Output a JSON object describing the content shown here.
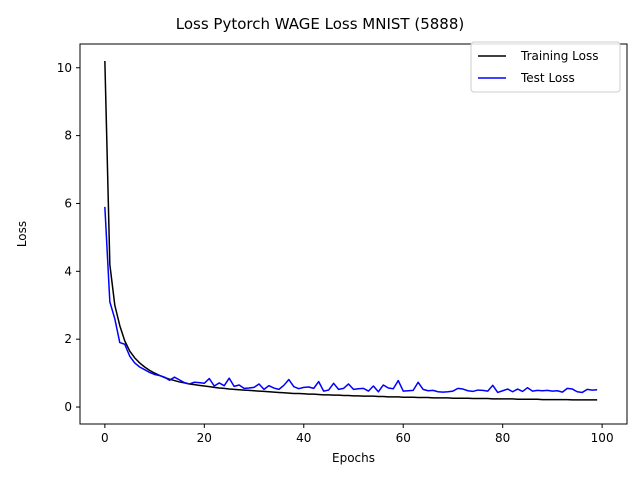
{
  "chart_data": {
    "type": "line",
    "title": "Loss Pytorch WAGE Loss MNIST (5888)",
    "xlabel": "Epochs",
    "ylabel": "Loss",
    "xlim": [
      -5,
      105
    ],
    "ylim": [
      -0.5,
      10.7
    ],
    "xticks": [
      0,
      20,
      40,
      60,
      80,
      100
    ],
    "yticks": [
      0,
      2,
      4,
      6,
      8,
      10
    ],
    "grid": false,
    "legend_position": "top-right",
    "series": [
      {
        "name": "Training Loss",
        "color": "#000000",
        "x": [
          0,
          1,
          2,
          3,
          4,
          5,
          6,
          7,
          8,
          9,
          10,
          11,
          12,
          13,
          14,
          15,
          16,
          17,
          18,
          19,
          20,
          21,
          22,
          23,
          24,
          25,
          26,
          27,
          28,
          29,
          30,
          31,
          32,
          33,
          34,
          35,
          36,
          37,
          38,
          39,
          40,
          41,
          42,
          43,
          44,
          45,
          46,
          47,
          48,
          49,
          50,
          51,
          52,
          53,
          54,
          55,
          56,
          57,
          58,
          59,
          60,
          61,
          62,
          63,
          64,
          65,
          66,
          67,
          68,
          69,
          70,
          71,
          72,
          73,
          74,
          75,
          76,
          77,
          78,
          79,
          80,
          81,
          82,
          83,
          84,
          85,
          86,
          87,
          88,
          89,
          90,
          91,
          92,
          93,
          94,
          95,
          96,
          97,
          98,
          99
        ],
        "values": [
          10.2,
          4.2,
          3.0,
          2.4,
          1.95,
          1.65,
          1.45,
          1.3,
          1.18,
          1.08,
          1.0,
          0.93,
          0.87,
          0.82,
          0.78,
          0.74,
          0.71,
          0.68,
          0.66,
          0.64,
          0.62,
          0.6,
          0.58,
          0.56,
          0.55,
          0.53,
          0.52,
          0.51,
          0.5,
          0.49,
          0.48,
          0.47,
          0.46,
          0.45,
          0.44,
          0.43,
          0.42,
          0.41,
          0.4,
          0.4,
          0.39,
          0.38,
          0.38,
          0.37,
          0.36,
          0.36,
          0.35,
          0.35,
          0.34,
          0.34,
          0.33,
          0.33,
          0.32,
          0.32,
          0.32,
          0.31,
          0.31,
          0.3,
          0.3,
          0.3,
          0.29,
          0.29,
          0.29,
          0.28,
          0.28,
          0.28,
          0.27,
          0.27,
          0.27,
          0.27,
          0.26,
          0.26,
          0.26,
          0.26,
          0.25,
          0.25,
          0.25,
          0.25,
          0.24,
          0.24,
          0.24,
          0.24,
          0.24,
          0.23,
          0.23,
          0.23,
          0.23,
          0.23,
          0.22,
          0.22,
          0.22,
          0.22,
          0.22,
          0.22,
          0.21,
          0.21,
          0.21,
          0.21,
          0.21,
          0.21
        ]
      },
      {
        "name": "Test Loss",
        "color": "#0000ff",
        "x": [
          0,
          1,
          2,
          3,
          4,
          5,
          6,
          7,
          8,
          9,
          10,
          11,
          12,
          13,
          14,
          15,
          16,
          17,
          18,
          19,
          20,
          21,
          22,
          23,
          24,
          25,
          26,
          27,
          28,
          29,
          30,
          31,
          32,
          33,
          34,
          35,
          36,
          37,
          38,
          39,
          40,
          41,
          42,
          43,
          44,
          45,
          46,
          47,
          48,
          49,
          50,
          51,
          52,
          53,
          54,
          55,
          56,
          57,
          58,
          59,
          60,
          61,
          62,
          63,
          64,
          65,
          66,
          67,
          68,
          69,
          70,
          71,
          72,
          73,
          74,
          75,
          76,
          77,
          78,
          79,
          80,
          81,
          82,
          83,
          84,
          85,
          86,
          87,
          88,
          89,
          90,
          91,
          92,
          93,
          94,
          95,
          96,
          97,
          98,
          99
        ],
        "values": [
          5.9,
          3.1,
          2.6,
          1.9,
          1.85,
          1.5,
          1.3,
          1.18,
          1.1,
          1.02,
          0.96,
          0.93,
          0.88,
          0.79,
          0.88,
          0.8,
          0.72,
          0.68,
          0.73,
          0.72,
          0.7,
          0.84,
          0.62,
          0.71,
          0.63,
          0.85,
          0.61,
          0.65,
          0.55,
          0.56,
          0.58,
          0.68,
          0.52,
          0.63,
          0.56,
          0.52,
          0.64,
          0.81,
          0.6,
          0.54,
          0.58,
          0.59,
          0.55,
          0.75,
          0.47,
          0.5,
          0.7,
          0.52,
          0.55,
          0.68,
          0.52,
          0.54,
          0.55,
          0.47,
          0.62,
          0.45,
          0.65,
          0.56,
          0.54,
          0.78,
          0.47,
          0.48,
          0.49,
          0.73,
          0.52,
          0.48,
          0.49,
          0.45,
          0.44,
          0.45,
          0.47,
          0.55,
          0.53,
          0.48,
          0.46,
          0.5,
          0.49,
          0.47,
          0.64,
          0.43,
          0.48,
          0.53,
          0.45,
          0.53,
          0.46,
          0.57,
          0.47,
          0.49,
          0.48,
          0.49,
          0.47,
          0.48,
          0.44,
          0.55,
          0.53,
          0.45,
          0.43,
          0.52,
          0.5,
          0.51
        ]
      }
    ]
  }
}
